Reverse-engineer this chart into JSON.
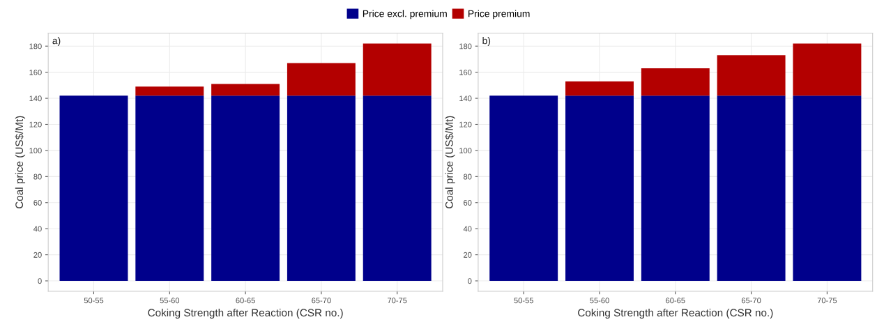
{
  "chart_data": [
    {
      "type": "bar",
      "stacked": true,
      "annotations": [
        "a)"
      ],
      "xlabel": "Coking Strength after Reaction (CSR no.)",
      "ylabel": "Coal price (US$/Mt)",
      "categories": [
        "50-55",
        "55-60",
        "60-65",
        "65-70",
        "70-75"
      ],
      "series": [
        {
          "name": "Price excl. premium",
          "color": "#00008b",
          "values": [
            142,
            142,
            142,
            142,
            142
          ]
        },
        {
          "name": "Price premium",
          "color": "#b30000",
          "values": [
            null,
            7,
            9,
            25,
            40
          ]
        }
      ],
      "ylim": [
        -8,
        190
      ],
      "yticks": [
        0,
        20,
        40,
        60,
        80,
        100,
        120,
        140,
        160,
        180
      ],
      "grid": true,
      "legend": "top"
    },
    {
      "type": "bar",
      "stacked": true,
      "annotations": [
        "b)"
      ],
      "xlabel": "Coking Strength after Reaction (CSR no.)",
      "ylabel": "Coal price (US$/Mt)",
      "categories": [
        "50-55",
        "55-60",
        "60-65",
        "65-70",
        "70-75"
      ],
      "series": [
        {
          "color": "#00008b",
          "values": [
            142,
            142,
            142,
            142,
            142
          ]
        },
        {
          "color": "#b30000",
          "values": [
            null,
            11,
            21,
            31,
            40
          ]
        }
      ],
      "ylim": [
        -8,
        190
      ],
      "yticks": [
        0,
        20,
        40,
        60,
        80,
        100,
        120,
        140,
        160,
        180
      ],
      "grid": true
    }
  ]
}
